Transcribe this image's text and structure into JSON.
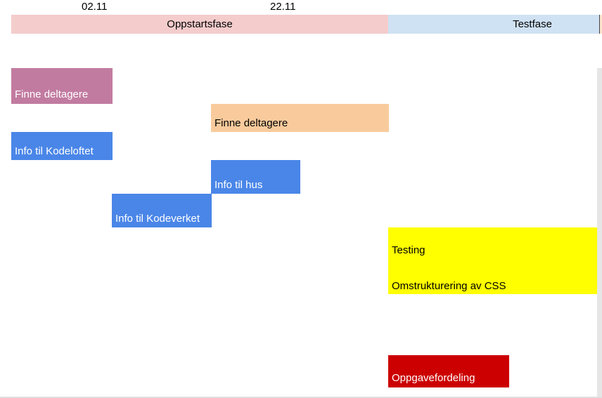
{
  "chart_data": {
    "type": "gantt",
    "dates": [
      "02.11",
      "22.11"
    ],
    "phases": [
      {
        "name": "Oppstartsfase",
        "color": "#f4cccc"
      },
      {
        "name": "Testfase",
        "color": "#cfe2f3"
      },
      {
        "name": "",
        "color": "#fce5cd"
      }
    ],
    "tasks": [
      {
        "label": "Finne deltagere",
        "color": "#c27ba0",
        "text_color": "#ffffff"
      },
      {
        "label": "Finne deltagere",
        "color": "#f9cb9c",
        "text_color": "#000000"
      },
      {
        "label": "Info til Kodeloftet",
        "color": "#4a86e8",
        "text_color": "#ffffff"
      },
      {
        "label": "Info til hus",
        "color": "#4a86e8",
        "text_color": "#ffffff"
      },
      {
        "label": "Info til Kodeverket",
        "color": "#4a86e8",
        "text_color": "#ffffff"
      },
      {
        "label": "Testing",
        "color": "#ffff00",
        "text_color": "#000000"
      },
      {
        "label": "Omstrukturering av CSS",
        "color": "#ffff00",
        "text_color": "#000000"
      },
      {
        "label": "Oppgavefordeling",
        "color": "#cc0000",
        "text_color": "#ffffff"
      }
    ]
  }
}
